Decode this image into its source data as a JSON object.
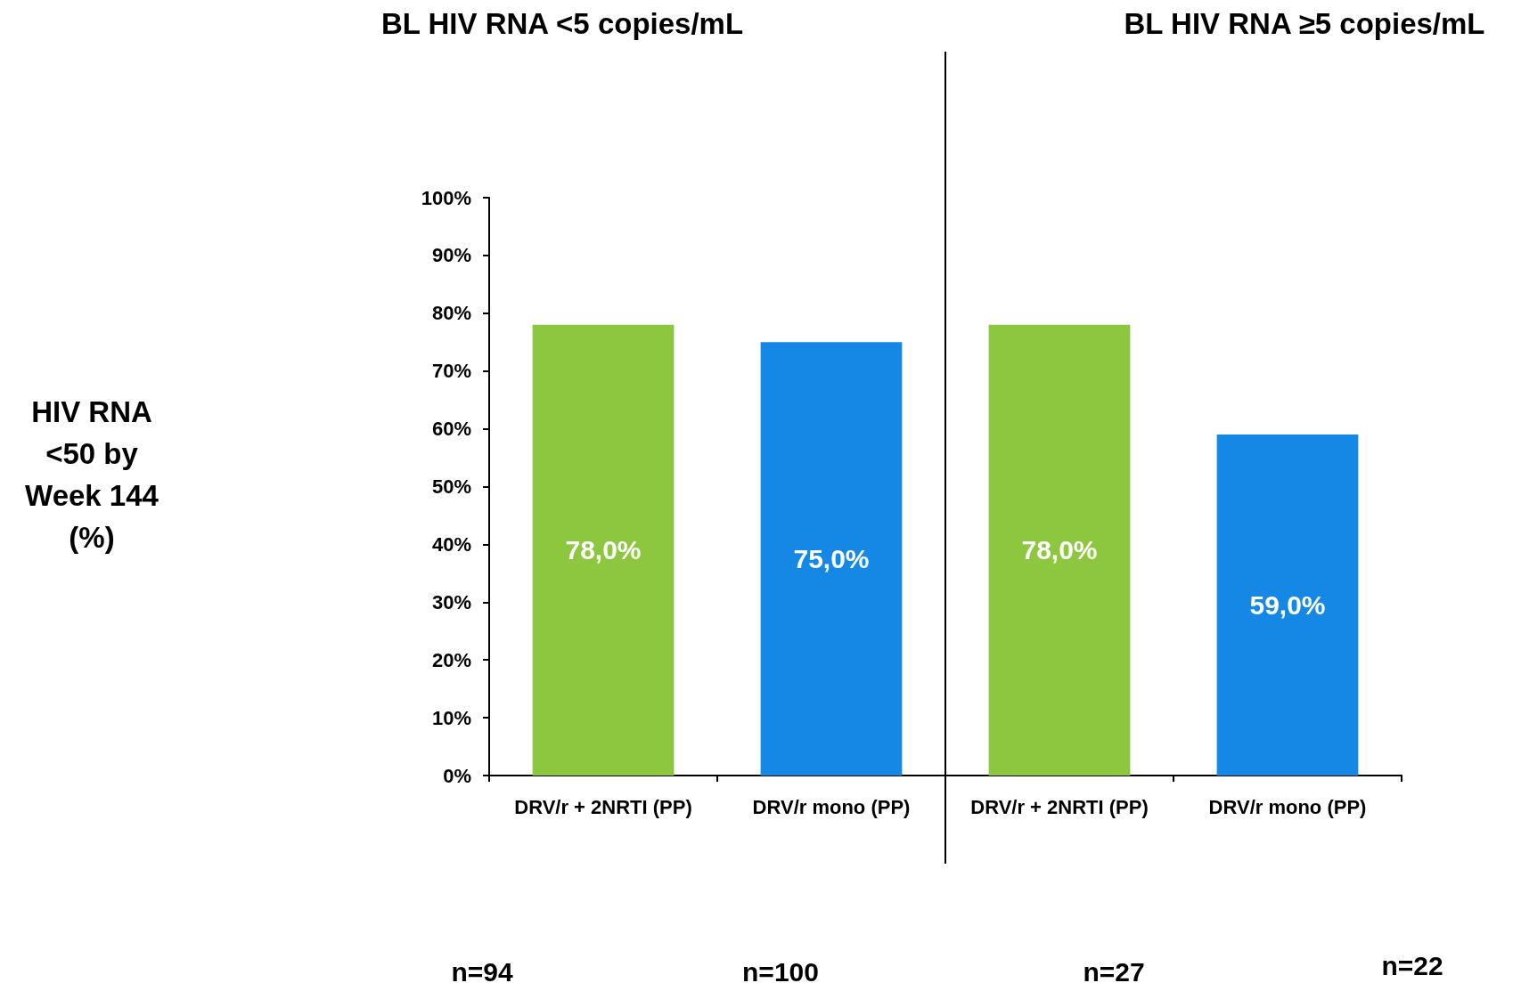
{
  "chart_data": {
    "type": "bar",
    "categories": [
      "DRV/r + 2NRTI (PP)",
      "DRV/r mono (PP)",
      "DRV/r + 2NRTI (PP)",
      "DRV/r mono (PP)"
    ],
    "values": [
      78,
      75,
      78,
      59
    ],
    "colors": [
      "#8dc63f",
      "#1488e4",
      "#8dc63f",
      "#1488e4"
    ],
    "value_labels": [
      "78,0%",
      "75,0%",
      "78,0%",
      "59,0%"
    ],
    "ylim": [
      0,
      100
    ],
    "yticks": [
      {
        "value": 0,
        "label": "0%"
      },
      {
        "value": 10,
        "label": "10%"
      },
      {
        "value": 20,
        "label": "20%"
      },
      {
        "value": 30,
        "label": "30%"
      },
      {
        "value": 40,
        "label": "40%"
      },
      {
        "value": 50,
        "label": "50%"
      },
      {
        "value": 60,
        "label": "60%"
      },
      {
        "value": 70,
        "label": "70%"
      },
      {
        "value": 80,
        "label": "80%"
      },
      {
        "value": 90,
        "label": "90%"
      },
      {
        "value": 100,
        "label": "100%"
      }
    ],
    "grid": false,
    "annotations": [
      "HIV RNA <50 by Week 144 (%)",
      "BL HIV RNA <5 copies/mL",
      "BL HIV RNA ≥5 copies/mL",
      "n=94",
      "n=100",
      "n=27",
      "n=22"
    ]
  }
}
